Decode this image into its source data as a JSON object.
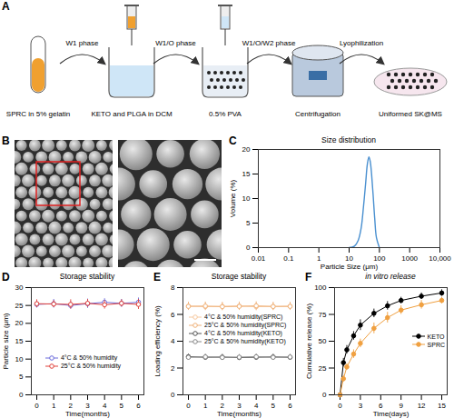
{
  "panel_a": {
    "panel_label": "A",
    "steps": [
      "SPRC in 5% gelatin",
      "KETO and PLGA in DCM",
      "0.5% PVA",
      "Centrifugation",
      "Uniformed SK@MS"
    ],
    "arrows": [
      "W1 phase",
      "W1/O phase",
      "W1/O/W2 phase",
      "Lyophilization"
    ]
  },
  "panel_b": {
    "panel_label": "B"
  },
  "chart_data": [
    {
      "panel_label": "C",
      "type": "line",
      "title": "Size distribution",
      "x_label": "Particle Size (μm)",
      "y_label": "Volume (%)",
      "log": "x",
      "xlim": [
        0.01,
        10000
      ],
      "xticks": [
        0.01,
        0.1,
        1,
        10,
        100,
        1000,
        {
          "value": 10000,
          "label": "10,000"
        }
      ],
      "ylim": [
        0,
        20
      ],
      "yticks": [
        0,
        5,
        10,
        15,
        20
      ],
      "grid": false,
      "x": [
        10,
        15,
        20,
        25,
        30,
        35,
        40,
        45,
        50,
        60,
        70,
        80,
        100
      ],
      "values": [
        0,
        0.3,
        1.5,
        4,
        8.5,
        13,
        17,
        18.5,
        17.5,
        12,
        6,
        2,
        0
      ],
      "color": "#4a90d0"
    },
    {
      "panel_label": "D",
      "type": "line",
      "title": "Storage stability",
      "x_label": "Time(months)",
      "y_label": "Particle size (μm)",
      "xlim": [
        0,
        6
      ],
      "xticks": [
        0,
        1,
        2,
        3,
        4,
        5,
        6
      ],
      "ylim": [
        0,
        30
      ],
      "yticks": [
        0,
        5,
        10,
        15,
        20,
        25,
        30
      ],
      "grid": false,
      "legend": "bottom",
      "x": [
        0,
        1,
        2,
        3,
        4,
        5,
        6
      ],
      "series": [
        {
          "name": "4°C & 50% humidity",
          "color": "#6b6bdb",
          "marker": "circle",
          "values": [
            25.3,
            25.5,
            25.0,
            25.5,
            25.9,
            25.6,
            25.9
          ],
          "errors": [
            1.0,
            1.2,
            1.0,
            1.3,
            1.0,
            1.1,
            1.2
          ]
        },
        {
          "name": "25°C & 50% humidity",
          "color": "#e0403a",
          "marker": "circle",
          "values": [
            25.5,
            25.4,
            25.3,
            25.6,
            25.2,
            25.6,
            25.3
          ],
          "errors": [
            1.1,
            1.0,
            1.3,
            1.1,
            1.2,
            1.0,
            1.4
          ]
        }
      ]
    },
    {
      "panel_label": "E",
      "type": "line",
      "title": "Storage stability",
      "x_label": "Time(months)",
      "y_label": "Loading efficiency (%)",
      "xlim": [
        0,
        6
      ],
      "xticks": [
        0,
        1,
        2,
        3,
        4,
        5,
        6
      ],
      "ylim": [
        0,
        8
      ],
      "yticks": [
        0,
        2,
        4,
        6,
        8
      ],
      "grid": false,
      "legend": "left",
      "x": [
        0,
        1,
        2,
        3,
        4,
        5,
        6
      ],
      "series": [
        {
          "name": "4°C & 50% humidity(SPRC)",
          "color": "#f7c9a0",
          "marker": "circle",
          "values": [
            6.62,
            6.58,
            6.6,
            6.63,
            6.57,
            6.6,
            6.61
          ],
          "errors": [
            0.3,
            0.3,
            0.3,
            0.3,
            0.3,
            0.3,
            0.3
          ]
        },
        {
          "name": "25°C & 50% humidity(SPRC)",
          "color": "#f0b27a",
          "marker": "circle",
          "values": [
            6.6,
            6.62,
            6.58,
            6.6,
            6.64,
            6.59,
            6.6
          ],
          "errors": [
            0.3,
            0.3,
            0.3,
            0.3,
            0.3,
            0.3,
            0.3
          ]
        },
        {
          "name": "4°C & 50% humidity(KETO)",
          "color": "#555555",
          "marker": "circle",
          "values": [
            2.85,
            2.8,
            2.82,
            2.78,
            2.8,
            2.83,
            2.8
          ],
          "errors": [
            0.2,
            0.2,
            0.2,
            0.2,
            0.2,
            0.2,
            0.2
          ]
        },
        {
          "name": "25°C & 50% humidity(KETO)",
          "color": "#888888",
          "marker": "circle",
          "values": [
            2.8,
            2.83,
            2.79,
            2.81,
            2.84,
            2.8,
            2.82
          ],
          "errors": [
            0.2,
            0.2,
            0.2,
            0.2,
            0.2,
            0.2,
            0.2
          ]
        }
      ]
    },
    {
      "panel_label": "F",
      "type": "line",
      "title": "in vitro release",
      "x_label": "Time(days)",
      "y_label": "Cumulative release (%)",
      "xlim": [
        0,
        15
      ],
      "xticks": [
        0,
        3,
        6,
        9,
        12,
        15
      ],
      "ylim": [
        0,
        100
      ],
      "yticks": [
        0,
        25,
        50,
        75,
        100
      ],
      "grid": false,
      "legend": "right",
      "x": [
        0,
        0.5,
        1,
        2,
        3,
        5,
        7,
        9,
        12,
        15
      ],
      "series": [
        {
          "name": "KETO",
          "color": "#000000",
          "marker": "dot",
          "values": [
            0,
            30,
            42,
            55,
            65,
            76,
            83,
            88,
            92,
            95
          ],
          "errors": [
            0,
            4,
            4,
            4,
            5,
            4,
            4,
            3,
            3,
            3
          ]
        },
        {
          "name": "SPRC",
          "color": "#f0a040",
          "marker": "dot",
          "values": [
            0,
            15,
            26,
            38,
            48,
            62,
            72,
            79,
            84,
            88
          ],
          "errors": [
            0,
            3,
            3,
            4,
            4,
            5,
            5,
            4,
            4,
            3
          ]
        }
      ]
    }
  ]
}
